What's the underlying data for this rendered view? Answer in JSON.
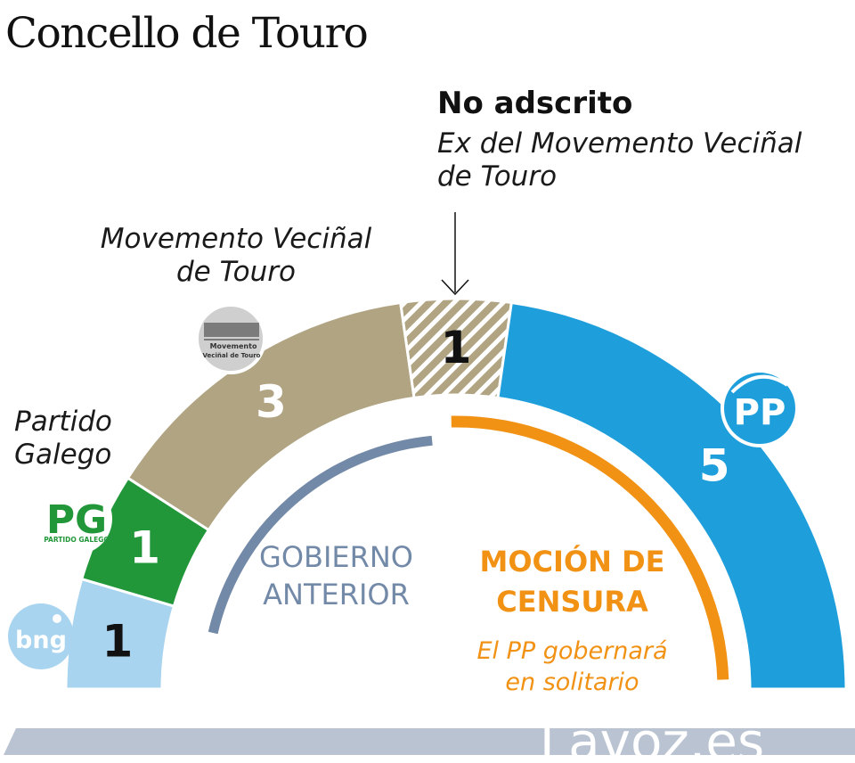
{
  "title": "Concello de Touro",
  "colors": {
    "bng": "#a9d4f0",
    "pg": "#21973a",
    "mvt": "#b0a483",
    "pp": "#1e9fdc",
    "gobierno": "#7389a8",
    "mocion": "#f19215",
    "footer": "#b9c3d1"
  },
  "chart_data": {
    "type": "pie",
    "subtype": "parliament-hemicycle",
    "total_seats": 11,
    "slices": [
      {
        "party": "BNG",
        "label": "1",
        "value": 1,
        "color": "#a9d4f0",
        "logo": "bng"
      },
      {
        "party": "PG",
        "label": "1",
        "value": 1,
        "color": "#21973a",
        "logo": "Partido Galego"
      },
      {
        "party": "Movemento Veciñal de Touro",
        "label": "3",
        "value": 3,
        "color": "#b0a483",
        "logo": "Movemento Veciñal de Touro"
      },
      {
        "party": "No adscrito",
        "label": "1",
        "value": 1,
        "color": "#b0a483",
        "pattern": "hatched"
      },
      {
        "party": "PP",
        "label": "5",
        "value": 5,
        "color": "#1e9fdc",
        "logo": "PP"
      }
    ],
    "annotations": {
      "pg_label": [
        "Partido",
        "Galego"
      ],
      "mvt_label": [
        "Movemento Veciñal",
        "de Touro"
      ],
      "no_adscrito_title": "No adscrito",
      "no_adscrito_sub": [
        "Ex del Movemento Veciñal",
        "de Touro"
      ],
      "gobierno_anterior": [
        "GOBIERNO",
        "ANTERIOR"
      ],
      "mocion_title": [
        "MOCIÓN DE",
        "CENSURA"
      ],
      "mocion_sub": [
        "El PP gobernará",
        "en solitario"
      ]
    }
  },
  "logos": {
    "bng": "bng",
    "pg_letters": "PG",
    "pg_text": "PARTIDO GALEGO",
    "mvt_text": [
      "Movemento",
      "Veciñal de Touro"
    ],
    "pp": "PP"
  },
  "footer": {
    "brand": "Lavoz.es"
  }
}
